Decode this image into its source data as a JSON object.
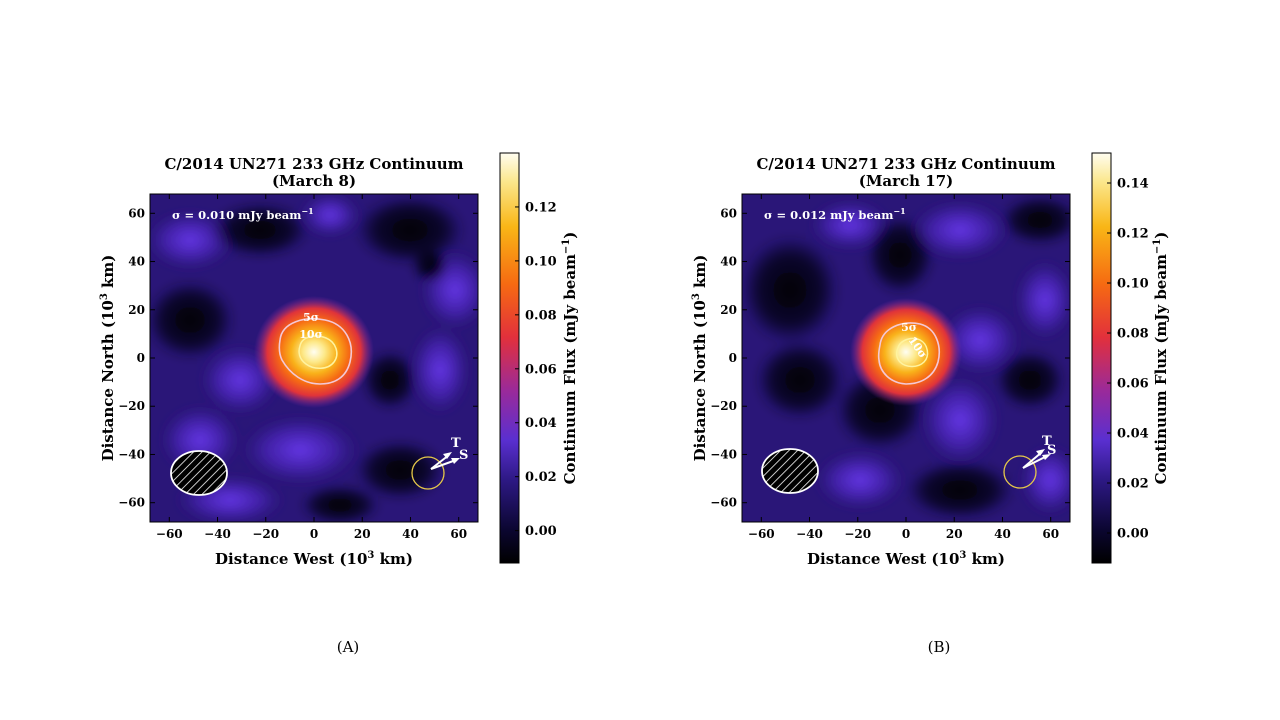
{
  "chart_data": [
    {
      "type": "heatmap",
      "panel_caption": "(A)",
      "title": "C/2014 UN271 233 GHz Continuum",
      "subtitle": "(March 8)",
      "xlabel": "Distance West (10",
      "xlabel_sup": "3",
      "xlabel_end": " km)",
      "ylabel": "Distance North (10",
      "ylabel_sup": "3",
      "ylabel_end": " km)",
      "xlim": [
        -68,
        68
      ],
      "ylim": [
        -68,
        68
      ],
      "xticks": [
        "−60",
        "−40",
        "−20",
        "0",
        "20",
        "40",
        "60"
      ],
      "xtick_values": [
        -60,
        -40,
        -20,
        0,
        20,
        40,
        60
      ],
      "yticks": [
        "60",
        "40",
        "20",
        "0",
        "−20",
        "−40",
        "−60"
      ],
      "ytick_values": [
        60,
        40,
        20,
        0,
        -20,
        -40,
        -60
      ],
      "colorbar": {
        "label": "Continuum Flux (mJy beam",
        "label_sup": "−1",
        "label_end": ")",
        "range": [
          -0.012,
          0.14
        ],
        "ticks": [
          "0.12",
          "0.10",
          "0.08",
          "0.06",
          "0.04",
          "0.02",
          "0.00"
        ],
        "tick_values": [
          0.12,
          0.1,
          0.08,
          0.06,
          0.04,
          0.02,
          0.0
        ]
      },
      "noise_label": "σ = 0.010 mJy beam",
      "noise_label_sup": "−1",
      "peak": {
        "x": 1,
        "y": 2,
        "value": 0.14
      },
      "contours": [
        {
          "label": "5σ",
          "level_sigma": 5,
          "color": "#f4c8d6"
        },
        {
          "label": "10σ",
          "level_sigma": 10,
          "color": "#fff3a0"
        }
      ],
      "compass_labels": [
        "T",
        "S"
      ],
      "beam": {
        "x": -47,
        "y": -47,
        "major": 24,
        "minor": 18
      }
    },
    {
      "type": "heatmap",
      "panel_caption": "(B)",
      "title": "C/2014 UN271 233 GHz Continuum",
      "subtitle": "(March 17)",
      "xlabel": "Distance West (10",
      "xlabel_sup": "3",
      "xlabel_end": " km)",
      "ylabel": "Distance North (10",
      "ylabel_sup": "3",
      "ylabel_end": " km)",
      "xlim": [
        -68,
        68
      ],
      "ylim": [
        -68,
        68
      ],
      "xticks": [
        "−60",
        "−40",
        "−20",
        "0",
        "20",
        "40",
        "60"
      ],
      "xtick_values": [
        -60,
        -40,
        -20,
        0,
        20,
        40,
        60
      ],
      "yticks": [
        "60",
        "40",
        "20",
        "0",
        "−20",
        "−40",
        "−60"
      ],
      "ytick_values": [
        60,
        40,
        20,
        0,
        -20,
        -40,
        -60
      ],
      "colorbar": {
        "label": "Continuum Flux (mJy beam",
        "label_sup": "−1",
        "label_end": ")",
        "range": [
          -0.012,
          0.152
        ],
        "ticks": [
          "0.14",
          "0.12",
          "0.10",
          "0.08",
          "0.06",
          "0.04",
          "0.02",
          "0.00"
        ],
        "tick_values": [
          0.14,
          0.12,
          0.1,
          0.08,
          0.06,
          0.04,
          0.02,
          0.0
        ]
      },
      "noise_label": "σ = 0.012 mJy beam",
      "noise_label_sup": "−1",
      "peak": {
        "x": 1,
        "y": 2,
        "value": 0.15
      },
      "contours": [
        {
          "label": "5σ",
          "level_sigma": 5,
          "color": "#f4c8d6"
        },
        {
          "label": "10σ",
          "level_sigma": 10,
          "color": "#fff3a0"
        }
      ],
      "compass_labels": [
        "T",
        "S"
      ],
      "beam": {
        "x": -47,
        "y": -47,
        "major": 24,
        "minor": 18
      }
    }
  ]
}
